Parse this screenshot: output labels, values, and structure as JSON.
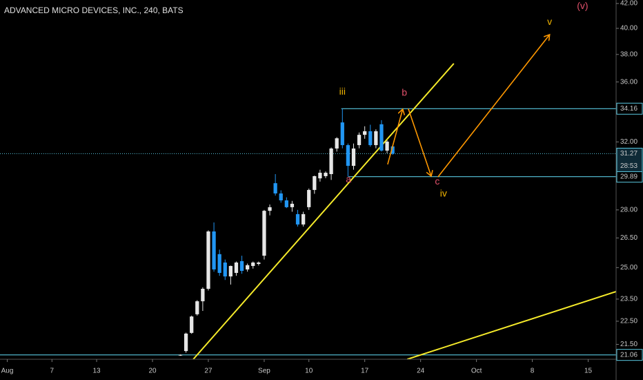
{
  "chart_data": {
    "type": "candlestick",
    "title": "ADVANCED MICRO DEVICES, INC., 240, BATS",
    "x": [
      -5,
      -4,
      -3,
      -2,
      -1,
      0,
      1,
      2,
      3,
      4,
      5,
      6,
      7,
      8,
      9,
      10,
      11,
      12,
      13,
      14,
      15,
      16,
      17,
      18,
      19,
      20,
      21,
      22,
      23,
      24,
      25,
      26,
      27,
      28,
      29,
      30,
      31,
      32,
      33
    ],
    "open": [
      21.05,
      21.22,
      21.99,
      22.81,
      23.4,
      23.98,
      26.84,
      25.67,
      25.25,
      24.57,
      24.74,
      25.32,
      24.91,
      25.08,
      25.18,
      25.59,
      27.95,
      29.51,
      28.92,
      28.53,
      28.15,
      27.77,
      27.21,
      28.15,
      29.12,
      29.79,
      29.92,
      30.04,
      31.59,
      33.25,
      31.8,
      30.53,
      31.8,
      32.45,
      32.68,
      31.8,
      33.13,
      31.46,
      31.72
    ],
    "high": [
      21.08,
      22.0,
      22.75,
      23.45,
      24.05,
      26.9,
      27.32,
      25.9,
      25.4,
      25.1,
      25.3,
      25.59,
      25.2,
      25.3,
      25.3,
      28.0,
      28.3,
      30.04,
      29.1,
      28.7,
      28.5,
      28.0,
      27.9,
      29.2,
      29.95,
      30.3,
      30.2,
      31.65,
      32.3,
      34.16,
      31.9,
      31.9,
      32.6,
      33.0,
      33.1,
      32.8,
      33.4,
      32.1,
      31.8
    ],
    "low": [
      21.02,
      21.15,
      21.95,
      22.75,
      22.96,
      23.9,
      24.8,
      24.6,
      24.4,
      24.18,
      24.6,
      24.7,
      24.8,
      24.95,
      25.1,
      25.4,
      27.7,
      28.8,
      28.4,
      28.1,
      27.9,
      27.1,
      27.1,
      28.0,
      28.9,
      29.6,
      29.8,
      29.7,
      31.4,
      31.6,
      29.89,
      30.3,
      31.6,
      32.2,
      31.7,
      31.6,
      31.4,
      31.3,
      31.2
    ],
    "close": [
      21.06,
      21.96,
      22.71,
      23.4,
      23.98,
      26.84,
      24.91,
      24.74,
      24.57,
      25.08,
      25.25,
      24.84,
      25.12,
      25.25,
      25.25,
      27.95,
      28.15,
      28.92,
      28.53,
      28.15,
      28.34,
      27.21,
      27.77,
      29.12,
      29.92,
      30.12,
      30.12,
      31.59,
      32.23,
      31.8,
      30.53,
      31.59,
      32.45,
      32.68,
      31.8,
      32.68,
      31.46,
      32.02,
      31.27
    ],
    "up_color": "#e6e6e6",
    "down_color": "#2196f3",
    "xlim": [
      -37.3,
      73
    ],
    "ylim": [
      20.88,
      42.29
    ],
    "log_scale": true,
    "xticks": [
      {
        "value": -36,
        "label": "Aug"
      },
      {
        "value": -28,
        "label": "7"
      },
      {
        "value": -20,
        "label": "13"
      },
      {
        "value": -10,
        "label": "20"
      },
      {
        "value": 0,
        "label": "27"
      },
      {
        "value": 10,
        "label": "Sep"
      },
      {
        "value": 18,
        "label": "10"
      },
      {
        "value": 28,
        "label": "17"
      },
      {
        "value": 38,
        "label": "24"
      },
      {
        "value": 48,
        "label": "Oct"
      },
      {
        "value": 58,
        "label": "8"
      },
      {
        "value": 68,
        "label": "15"
      }
    ],
    "yticks": [
      {
        "value": 42,
        "label": "42.00"
      },
      {
        "value": 40,
        "label": "40.00"
      },
      {
        "value": 38,
        "label": "38.00"
      },
      {
        "value": 36,
        "label": "36.00"
      },
      {
        "value": 32,
        "label": "32.00"
      },
      {
        "value": 28,
        "label": "28.00"
      },
      {
        "value": 26.5,
        "label": "26.50"
      },
      {
        "value": 25,
        "label": "25.00"
      },
      {
        "value": 23.5,
        "label": "23.50"
      },
      {
        "value": 22.5,
        "label": "22.50"
      },
      {
        "value": 21.5,
        "label": "21.50"
      }
    ],
    "levels": [
      {
        "value": 34.16,
        "from": 23.8
      },
      {
        "value": 29.89,
        "from": 25.1
      },
      {
        "value": 21.06,
        "from": -37.3
      }
    ],
    "level_color": "#5ac8e0",
    "last_price": {
      "value": 31.27,
      "countdown": "28:53"
    },
    "trendlines": [
      {
        "x": [
          -2.7,
          43.95
        ],
        "y": [
          20.88,
          37.33
        ]
      },
      {
        "x": [
          35.6,
          73
        ],
        "y": [
          20.88,
          23.85
        ]
      }
    ],
    "trendline_color": "#f5ea2a",
    "arrows": [
      {
        "x": [
          32.1,
          34.8
        ],
        "y": [
          30.62,
          34.13
        ]
      },
      {
        "x": [
          35.8,
          39.9
        ],
        "y": [
          34.16,
          29.92
        ]
      },
      {
        "x": [
          41.1,
          61.1
        ],
        "y": [
          29.87,
          39.51
        ]
      }
    ],
    "arrow_color": "#ff9800",
    "annotations": [
      {
        "text": "iii",
        "x": 24.0,
        "y": 35.3,
        "color": "#f0b400"
      },
      {
        "text": "a",
        "x": 25.1,
        "y": 29.7,
        "color": "#e0506a"
      },
      {
        "text": "b",
        "x": 35.1,
        "y": 35.21,
        "color": "#e0506a"
      },
      {
        "text": "c",
        "x": 41.0,
        "y": 29.59,
        "color": "#e0506a"
      },
      {
        "text": "iv",
        "x": 42.1,
        "y": 28.88,
        "color": "#f0b400"
      },
      {
        "text": "v",
        "x": 61.1,
        "y": 40.49,
        "color": "#f0b400"
      },
      {
        "text": "(v)",
        "x": 67.0,
        "y": 41.77,
        "color": "#e0506a"
      }
    ]
  }
}
